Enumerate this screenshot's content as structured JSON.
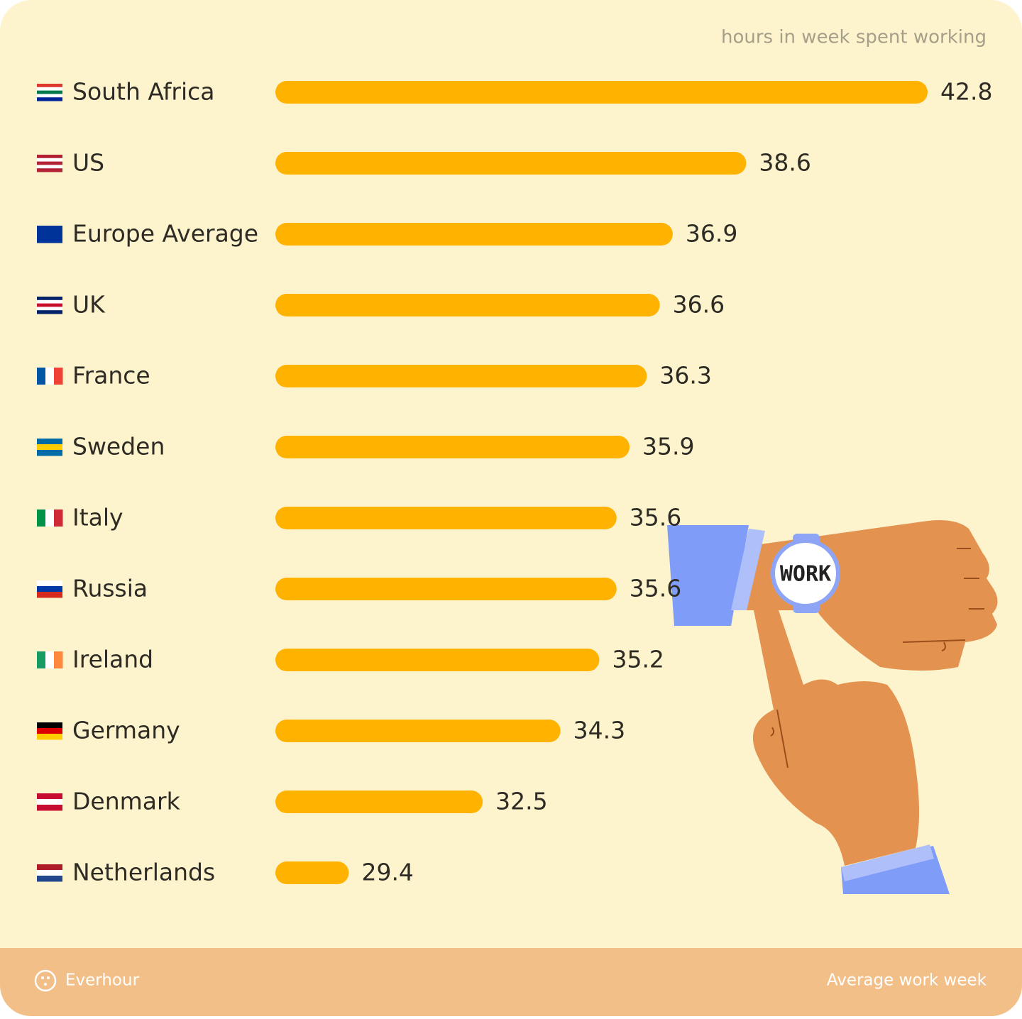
{
  "chart_data": {
    "type": "bar",
    "orientation": "horizontal",
    "subtitle": "hours in week spent working",
    "categories": [
      "South Africa",
      "US",
      "Europe Average",
      "UK",
      "France",
      "Sweden",
      "Italy",
      "Russia",
      "Ireland",
      "Germany",
      "Denmark",
      "Netherlands"
    ],
    "values": [
      42.8,
      38.6,
      36.9,
      36.6,
      36.3,
      35.9,
      35.6,
      35.6,
      35.2,
      34.3,
      32.5,
      29.4
    ],
    "color": "#ffb300",
    "xlim": [
      27.7,
      42.8
    ]
  },
  "illustration": {
    "watch_text": "WORK"
  },
  "footer": {
    "brand": "Everhour",
    "caption": "Average work week"
  }
}
